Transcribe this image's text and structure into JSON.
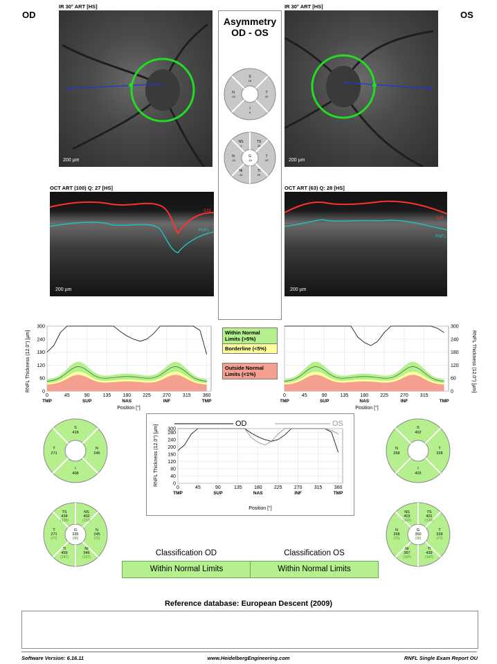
{
  "od": {
    "eye": "OD",
    "ir_caption": "IR 30° ART [HS]",
    "ir_scale": "200 µm",
    "oct_caption": "OCT ART (100) Q: 27 [HS]",
    "oct_scale": "200 µm",
    "oct_labels": [
      "ILM",
      "RNFL"
    ],
    "sectors4": {
      "S": "418",
      "T": "271",
      "N": "245",
      "I": "408"
    },
    "sectors6": {
      "TS": [
        "434",
        "(138)"
      ],
      "NS": [
        "402",
        "(102)"
      ],
      "T": [
        "271",
        "(77)"
      ],
      "G": [
        "335",
        "(98)"
      ],
      "N": [
        "245",
        "(72)"
      ],
      "TI": [
        "459",
        "(147)"
      ],
      "NI": [
        "346",
        "(107)"
      ]
    },
    "classification_title": "Classification OD",
    "classification": "Within Normal Limits"
  },
  "os": {
    "eye": "OS",
    "ir_caption": "IR 30° ART [HS]",
    "ir_scale": "200 µm",
    "oct_caption": "OCT ART (63) Q: 28 [HS]",
    "oct_scale": "200 µm",
    "oct_labels": [
      "ILM",
      "RNFL"
    ],
    "sectors4": {
      "S": "402",
      "N": "268",
      "T": "328",
      "I": "403"
    },
    "sectors6": {
      "NS": [
        "403",
        "(102)"
      ],
      "TS": [
        "401",
        "(138)"
      ],
      "N": [
        "268",
        "(72)"
      ],
      "G": [
        "350",
        "(98)"
      ],
      "T": [
        "328",
        "(77)"
      ],
      "NI": [
        "367",
        "(107)"
      ],
      "TI": [
        "439",
        "(147)"
      ]
    },
    "classification_title": "Classification OS",
    "classification": "Within Normal Limits"
  },
  "asymmetry": {
    "title": [
      "Asymmetry",
      "OD - OS"
    ],
    "sectors4": {
      "S": "S",
      "S_val": "16",
      "N": "N",
      "N_val": "-23",
      "T": "T",
      "T_val": "-57",
      "I": "I",
      "I_val": "5"
    },
    "sectors6": {
      "NS": "NS",
      "NS_val": "-1",
      "TS": "TS",
      "TS_val": "33",
      "N": "N",
      "N_val": "-23",
      "G": "G",
      "G_val": "-15",
      "T": "T",
      "T_val": "-57",
      "NI": "NI",
      "NI_val": "-21",
      "TI": "TI",
      "TI_val": "20"
    }
  },
  "legend": {
    "wnl": [
      "Within Normal",
      "Limits (>5%)"
    ],
    "borderline": [
      "Borderline (<5%)"
    ],
    "onl": [
      "Outside Normal",
      "Limits (<1%)"
    ],
    "colors": {
      "wnl": "#b6f08e",
      "borderline": "#ffff9e",
      "onl": "#f4a090"
    }
  },
  "chart_data": [
    {
      "type": "line",
      "name": "od-rnfl-profile",
      "ylabel": "RNFL Thickness (12.0°) [µm]",
      "xlabel": "Position [°]",
      "ylim": [
        0,
        300
      ],
      "xlim": [
        0,
        370
      ],
      "yticks": [
        "0",
        "60",
        "120",
        "180",
        "240",
        "300"
      ],
      "xticks": [
        "0",
        "45",
        "90",
        "135",
        "180",
        "225",
        "270",
        "315",
        "360"
      ],
      "region_labels": [
        "TMP",
        "SUP",
        "NAS",
        "INF",
        "TMP"
      ],
      "x": [
        0,
        15,
        30,
        45,
        60,
        75,
        90,
        105,
        120,
        135,
        150,
        165,
        180,
        195,
        210,
        225,
        240,
        255,
        270,
        285,
        300,
        315,
        330,
        345,
        360
      ],
      "values": [
        180,
        210,
        270,
        300,
        300,
        300,
        300,
        300,
        300,
        300,
        300,
        275,
        255,
        240,
        230,
        240,
        265,
        300,
        300,
        300,
        300,
        300,
        300,
        280,
        170
      ]
    },
    {
      "type": "line",
      "name": "os-rnfl-profile",
      "ylabel": "RNFL Thickness (12.0°) [µm]",
      "xlabel": "Position [°]",
      "ylim": [
        0,
        300
      ],
      "xlim": [
        0,
        370
      ],
      "yticks": [
        "0",
        "60",
        "120",
        "180",
        "240",
        "300"
      ],
      "xticks": [
        "0",
        "45",
        "90",
        "135",
        "180",
        "225",
        "270",
        "315"
      ],
      "region_labels": [
        "TMP",
        "SUP",
        "NAS",
        "INF",
        "TMP"
      ],
      "x": [
        0,
        15,
        30,
        45,
        60,
        75,
        90,
        105,
        120,
        135,
        150,
        165,
        180,
        195,
        210,
        225,
        240,
        255,
        270,
        285,
        300,
        315,
        330,
        345,
        360
      ],
      "values": [
        300,
        300,
        300,
        300,
        300,
        300,
        300,
        300,
        300,
        300,
        300,
        250,
        225,
        210,
        230,
        270,
        300,
        300,
        300,
        300,
        300,
        300,
        300,
        290,
        270
      ]
    },
    {
      "type": "line",
      "name": "ou-comparison",
      "ylabel": "RNFL Thickness (12.0°) [µm]",
      "xlabel": "Position [°]",
      "ylim": [
        0,
        300
      ],
      "xlim": [
        0,
        370
      ],
      "yticks": [
        "0",
        "40",
        "80",
        "120",
        "160",
        "200",
        "240",
        "280",
        "300"
      ],
      "xticks": [
        "0",
        "45",
        "90",
        "135",
        "180",
        "225",
        "270",
        "315",
        "360"
      ],
      "region_labels": [
        "TMP",
        "SUP",
        "NAS",
        "INF",
        "TMP"
      ],
      "legend": [
        "OD",
        "OS"
      ],
      "x": [
        0,
        15,
        30,
        45,
        60,
        75,
        90,
        105,
        120,
        135,
        150,
        165,
        180,
        195,
        210,
        225,
        240,
        255,
        270,
        285,
        300,
        315,
        330,
        345,
        360
      ],
      "series": [
        {
          "name": "OD",
          "values": [
            180,
            210,
            270,
            300,
            300,
            300,
            300,
            300,
            300,
            300,
            300,
            275,
            255,
            240,
            230,
            240,
            265,
            300,
            300,
            300,
            300,
            300,
            300,
            280,
            170
          ]
        },
        {
          "name": "OS",
          "values": [
            300,
            300,
            300,
            300,
            300,
            300,
            300,
            300,
            300,
            300,
            300,
            250,
            225,
            210,
            230,
            270,
            300,
            300,
            300,
            300,
            300,
            300,
            300,
            290,
            270
          ]
        }
      ]
    }
  ],
  "reference": "Reference database: European Descent (2009)",
  "footer": {
    "version": "Software Version: 6.16.11",
    "url": "www.HeidelbergEngineering.com",
    "report": "RNFL Single Exam Report OU"
  }
}
